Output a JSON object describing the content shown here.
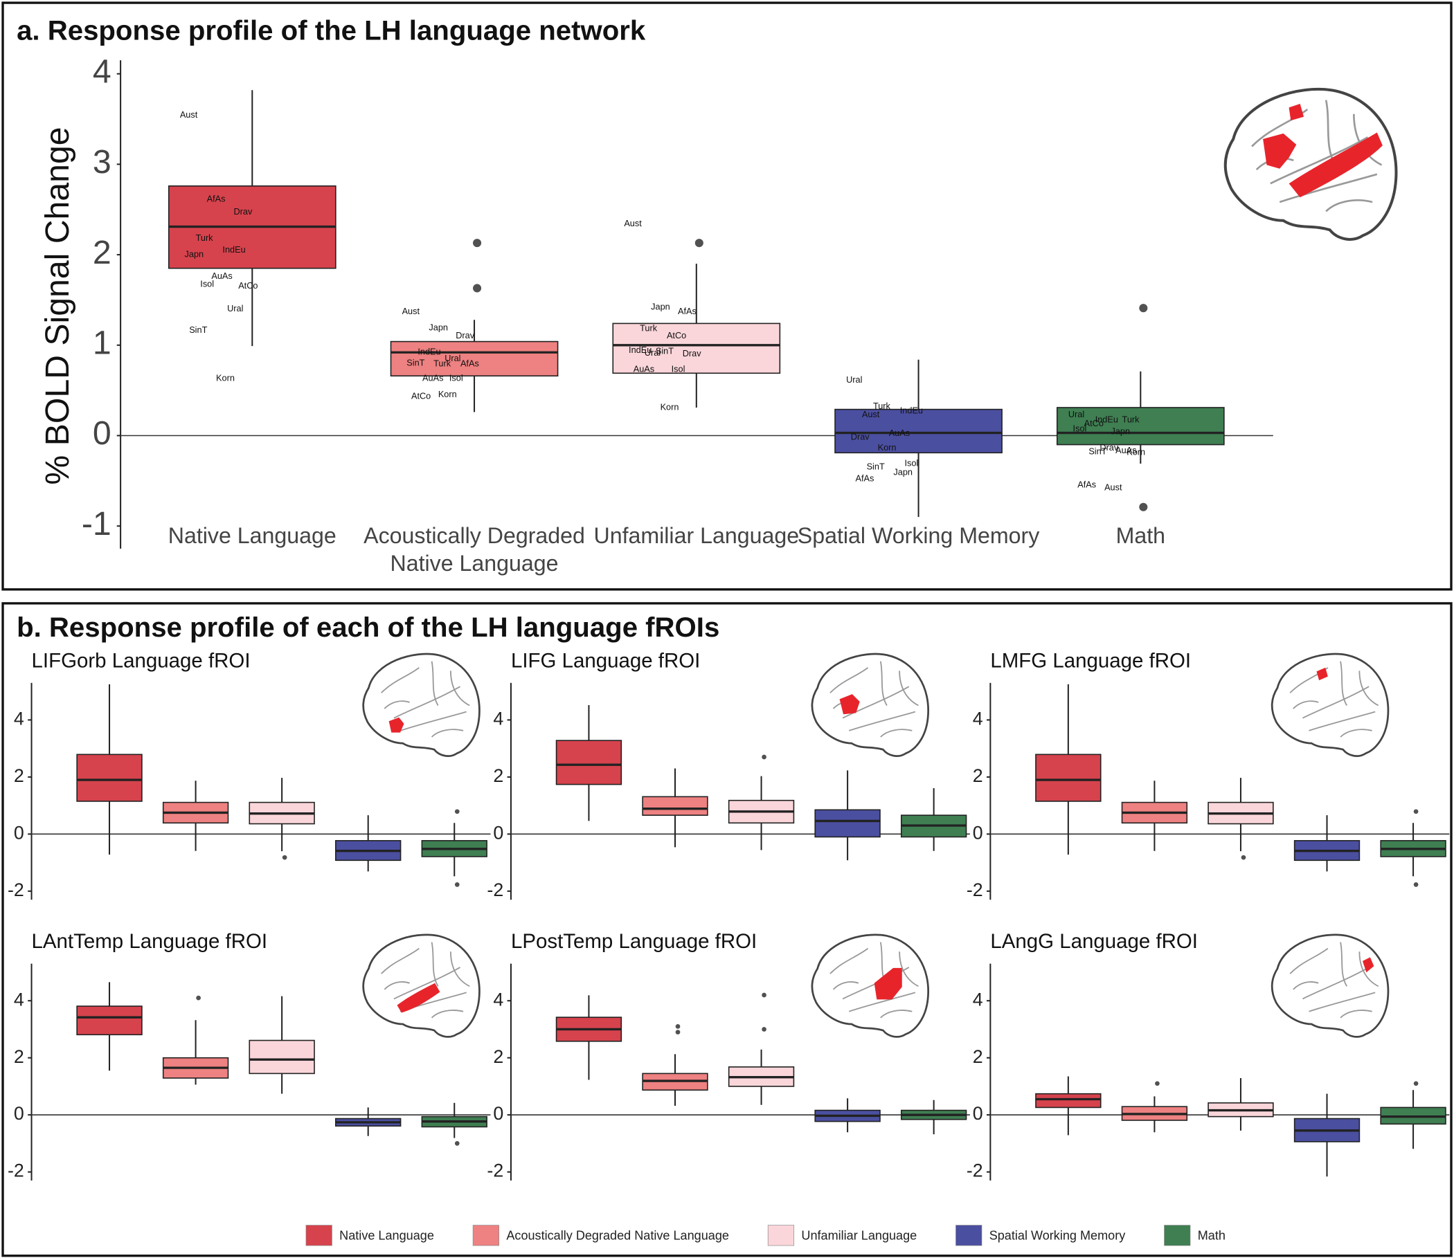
{
  "panel_a_title": "a. Response profile of the LH language network",
  "panel_b_title": "b. Response profile of each of the LH language fROIs",
  "legend": [
    {
      "name": "Native Language",
      "color": "#d6434d"
    },
    {
      "name": "Acoustically Degraded Native Language",
      "color": "#ee8181"
    },
    {
      "name": "Unfamiliar Language",
      "color": "#fad6da"
    },
    {
      "name": "Spatial Working Memory",
      "color": "#4b4fa0"
    },
    {
      "name": "Math",
      "color": "#3f7f52"
    }
  ],
  "chart_data": [
    {
      "type": "box",
      "ylabel": "% BOLD Signal Change",
      "categories": [
        "Native Language",
        "Acoustically Degraded Native Language",
        "Unfamiliar Language",
        "Spatial Working Memory",
        "Math"
      ],
      "ylim": [
        -1.25,
        4.15
      ],
      "yticks": [
        -1,
        0,
        1,
        2,
        3,
        4
      ],
      "baseline": true,
      "boxes": [
        {
          "whislo": 0.99,
          "q1": 1.85,
          "median": 2.31,
          "q3": 2.76,
          "whishi": 3.82,
          "outliers": [],
          "labels": [
            {
              "text": "Aust",
              "value": 3.54
            },
            {
              "text": "AfAs",
              "value": 2.61
            },
            {
              "text": "Drav",
              "value": 2.47
            },
            {
              "text": "Turk",
              "value": 2.18
            },
            {
              "text": "IndEu",
              "value": 2.05
            },
            {
              "text": "Japn",
              "value": 2.0
            },
            {
              "text": "AuAs",
              "value": 1.76
            },
            {
              "text": "AtCo",
              "value": 1.65
            },
            {
              "text": "Isol",
              "value": 1.67
            },
            {
              "text": "Ural",
              "value": 1.4
            },
            {
              "text": "SinT",
              "value": 1.16
            },
            {
              "text": "Korn",
              "value": 0.63
            }
          ]
        },
        {
          "whislo": 0.26,
          "q1": 0.66,
          "median": 0.92,
          "q3": 1.04,
          "whishi": 1.28,
          "outliers": [
            2.13,
            1.63
          ],
          "labels": [
            {
              "text": "Aust",
              "value": 1.37
            },
            {
              "text": "Japn",
              "value": 1.19
            },
            {
              "text": "Drav",
              "value": 1.1
            },
            {
              "text": "IndEu",
              "value": 0.92
            },
            {
              "text": "Ural",
              "value": 0.85
            },
            {
              "text": "SinT",
              "value": 0.8
            },
            {
              "text": "Turk",
              "value": 0.79
            },
            {
              "text": "AfAs",
              "value": 0.79
            },
            {
              "text": "AuAs",
              "value": 0.63
            },
            {
              "text": "Isol",
              "value": 0.63
            },
            {
              "text": "AtCo",
              "value": 0.43
            },
            {
              "text": "Korn",
              "value": 0.45
            }
          ]
        },
        {
          "whislo": 0.31,
          "q1": 0.69,
          "median": 1.0,
          "q3": 1.24,
          "whishi": 1.9,
          "outliers": [
            2.13
          ],
          "labels": [
            {
              "text": "Aust",
              "value": 2.34
            },
            {
              "text": "Japn",
              "value": 1.42
            },
            {
              "text": "AfAs",
              "value": 1.37
            },
            {
              "text": "Turk",
              "value": 1.18
            },
            {
              "text": "AtCo",
              "value": 1.1
            },
            {
              "text": "IndEu",
              "value": 0.94
            },
            {
              "text": "SinT",
              "value": 0.93
            },
            {
              "text": "Drav",
              "value": 0.9
            },
            {
              "text": "Ural",
              "value": 0.91
            },
            {
              "text": "Isol",
              "value": 0.73
            },
            {
              "text": "AuAs",
              "value": 0.73
            },
            {
              "text": "Korn",
              "value": 0.31
            }
          ]
        },
        {
          "whislo": -0.9,
          "q1": -0.19,
          "median": 0.03,
          "q3": 0.29,
          "whishi": 0.84,
          "outliers": [],
          "labels": [
            {
              "text": "Ural",
              "value": 0.61
            },
            {
              "text": "Turk",
              "value": 0.32
            },
            {
              "text": "IndEu",
              "value": 0.27
            },
            {
              "text": "Aust",
              "value": 0.23
            },
            {
              "text": "AuAs",
              "value": 0.02
            },
            {
              "text": "Drav",
              "value": -0.02
            },
            {
              "text": "Korn",
              "value": -0.14
            },
            {
              "text": "Isol",
              "value": -0.31
            },
            {
              "text": "SinT",
              "value": -0.35
            },
            {
              "text": "Japn",
              "value": -0.41
            },
            {
              "text": "AfAs",
              "value": -0.48
            }
          ]
        },
        {
          "whislo": -0.31,
          "q1": -0.1,
          "median": 0.03,
          "q3": 0.31,
          "whishi": 0.71,
          "outliers": [
            1.41,
            -0.79
          ],
          "labels": [
            {
              "text": "Ural",
              "value": 0.23
            },
            {
              "text": "IndEu",
              "value": 0.17
            },
            {
              "text": "Turk",
              "value": 0.17
            },
            {
              "text": "AtCo",
              "value": 0.13
            },
            {
              "text": "Japn",
              "value": 0.04
            },
            {
              "text": "Isol",
              "value": 0.07
            },
            {
              "text": "Drav",
              "value": -0.14
            },
            {
              "text": "Korn",
              "value": -0.19
            },
            {
              "text": "SinT",
              "value": -0.18
            },
            {
              "text": "AuAs",
              "value": -0.17
            },
            {
              "text": "AfAs",
              "value": -0.55
            },
            {
              "text": "Aust",
              "value": -0.58
            }
          ]
        }
      ]
    },
    {
      "type": "box",
      "title": "LIFGorb Language fROI",
      "ylim": [
        -2.3,
        5.3
      ],
      "yticks": [
        -2,
        0,
        2,
        4
      ],
      "baseline": true,
      "boxes": [
        {
          "whislo": -0.72,
          "q1": 1.15,
          "median": 1.9,
          "q3": 2.79,
          "whishi": 5.25,
          "outliers": []
        },
        {
          "whislo": -0.59,
          "q1": 0.39,
          "median": 0.75,
          "q3": 1.11,
          "whishi": 1.87,
          "outliers": []
        },
        {
          "whislo": -0.6,
          "q1": 0.36,
          "median": 0.72,
          "q3": 1.11,
          "whishi": 1.97,
          "outliers": [
            -0.82
          ]
        },
        {
          "whislo": -1.31,
          "q1": -0.92,
          "median": -0.59,
          "q3": -0.23,
          "whishi": 0.66,
          "outliers": []
        },
        {
          "whislo": -1.48,
          "q1": -0.79,
          "median": -0.52,
          "q3": -0.23,
          "whishi": 0.39,
          "outliers": [
            0.79,
            -1.77
          ]
        }
      ]
    },
    {
      "type": "box",
      "title": "LIFG Language fROI",
      "ylim": [
        -2.3,
        5.3
      ],
      "yticks": [
        -2,
        0,
        2,
        4
      ],
      "baseline": true,
      "boxes": [
        {
          "whislo": 0.46,
          "q1": 1.74,
          "median": 2.43,
          "q3": 3.28,
          "whishi": 4.52,
          "outliers": []
        },
        {
          "whislo": -0.46,
          "q1": 0.66,
          "median": 0.89,
          "q3": 1.31,
          "whishi": 2.3,
          "outliers": []
        },
        {
          "whislo": -0.56,
          "q1": 0.39,
          "median": 0.79,
          "q3": 1.18,
          "whishi": 2.03,
          "outliers": [
            2.7
          ]
        },
        {
          "whislo": -0.92,
          "q1": -0.1,
          "median": 0.46,
          "q3": 0.85,
          "whishi": 2.23,
          "outliers": []
        },
        {
          "whislo": -0.59,
          "q1": -0.1,
          "median": 0.3,
          "q3": 0.66,
          "whishi": 1.61,
          "outliers": []
        }
      ]
    },
    {
      "type": "box",
      "title": "LMFG Language fROI",
      "ylim": [
        -2.3,
        5.3
      ],
      "yticks": [
        -2,
        0,
        2,
        4
      ],
      "baseline": true,
      "boxes": [
        {
          "whislo": -0.72,
          "q1": 1.15,
          "median": 1.9,
          "q3": 2.79,
          "whishi": 5.25,
          "outliers": []
        },
        {
          "whislo": -0.59,
          "q1": 0.39,
          "median": 0.75,
          "q3": 1.11,
          "whishi": 1.87,
          "outliers": []
        },
        {
          "whislo": -0.6,
          "q1": 0.36,
          "median": 0.72,
          "q3": 1.11,
          "whishi": 1.97,
          "outliers": [
            -0.82
          ]
        },
        {
          "whislo": -1.31,
          "q1": -0.92,
          "median": -0.59,
          "q3": -0.23,
          "whishi": 0.66,
          "outliers": []
        },
        {
          "whislo": -1.48,
          "q1": -0.79,
          "median": -0.52,
          "q3": -0.23,
          "whishi": 0.39,
          "outliers": [
            0.79,
            -1.77
          ]
        }
      ]
    },
    {
      "type": "box",
      "title": "LAntTemp Language fROI",
      "ylim": [
        -2.3,
        5.3
      ],
      "yticks": [
        -2,
        0,
        2,
        4
      ],
      "baseline": true,
      "boxes": [
        {
          "whislo": 1.55,
          "q1": 2.81,
          "median": 3.42,
          "q3": 3.81,
          "whishi": 4.65,
          "outliers": []
        },
        {
          "whislo": 1.06,
          "q1": 1.29,
          "median": 1.65,
          "q3": 2.0,
          "whishi": 3.32,
          "outliers": [
            4.1
          ]
        },
        {
          "whislo": 0.74,
          "q1": 1.45,
          "median": 1.94,
          "q3": 2.61,
          "whishi": 4.16,
          "outliers": []
        },
        {
          "whislo": -0.74,
          "q1": -0.39,
          "median": -0.26,
          "q3": -0.13,
          "whishi": 0.26,
          "outliers": []
        },
        {
          "whislo": -0.81,
          "q1": -0.42,
          "median": -0.23,
          "q3": -0.06,
          "whishi": 0.42,
          "outliers": [
            -1.0
          ]
        }
      ]
    },
    {
      "type": "box",
      "title": "LPostTemp Language fROI",
      "ylim": [
        -2.3,
        5.3
      ],
      "yticks": [
        -2,
        0,
        2,
        4
      ],
      "baseline": true,
      "boxes": [
        {
          "whislo": 1.23,
          "q1": 2.58,
          "median": 3.0,
          "q3": 3.42,
          "whishi": 4.19,
          "outliers": []
        },
        {
          "whislo": 0.32,
          "q1": 0.87,
          "median": 1.19,
          "q3": 1.45,
          "whishi": 2.13,
          "outliers": [
            2.9,
            3.1
          ]
        },
        {
          "whislo": 0.35,
          "q1": 1.0,
          "median": 1.32,
          "q3": 1.68,
          "whishi": 2.29,
          "outliers": [
            3.0,
            4.2
          ]
        },
        {
          "whislo": -0.61,
          "q1": -0.23,
          "median": -0.03,
          "q3": 0.16,
          "whishi": 0.58,
          "outliers": []
        },
        {
          "whislo": -0.68,
          "q1": -0.16,
          "median": 0.0,
          "q3": 0.16,
          "whishi": 0.52,
          "outliers": []
        }
      ]
    },
    {
      "type": "box",
      "title": "LAngG Language fROI",
      "ylim": [
        -2.3,
        5.3
      ],
      "yticks": [
        -2,
        0,
        2,
        4
      ],
      "baseline": true,
      "boxes": [
        {
          "whislo": -0.71,
          "q1": 0.26,
          "median": 0.55,
          "q3": 0.74,
          "whishi": 1.35,
          "outliers": []
        },
        {
          "whislo": -0.61,
          "q1": -0.19,
          "median": 0.03,
          "q3": 0.29,
          "whishi": 0.65,
          "outliers": [
            1.1
          ]
        },
        {
          "whislo": -0.55,
          "q1": -0.06,
          "median": 0.16,
          "q3": 0.42,
          "whishi": 1.29,
          "outliers": []
        },
        {
          "whislo": -2.16,
          "q1": -0.94,
          "median": -0.55,
          "q3": -0.13,
          "whishi": 0.74,
          "outliers": []
        },
        {
          "whislo": -1.19,
          "q1": -0.32,
          "median": -0.06,
          "q3": 0.26,
          "whishi": 0.87,
          "outliers": [
            1.1
          ]
        }
      ]
    }
  ]
}
